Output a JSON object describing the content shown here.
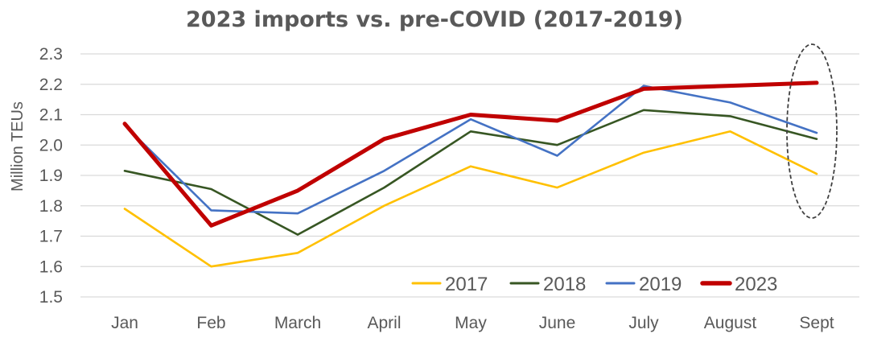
{
  "chart_data": {
    "type": "line",
    "title": "2023 imports vs. pre-COVID (2017-2019)",
    "xlabel": "",
    "ylabel": "Million TEUs",
    "categories": [
      "Jan",
      "Feb",
      "March",
      "April",
      "May",
      "June",
      "July",
      "August",
      "Sept"
    ],
    "ylim": [
      1.5,
      2.3
    ],
    "yticks": [
      "1.5",
      "1.6",
      "1.7",
      "1.8",
      "1.9",
      "2.0",
      "2.1",
      "2.2",
      "2.3"
    ],
    "grid": true,
    "legend_position": "bottom-right",
    "series": [
      {
        "name": "2017",
        "color": "#ffc000",
        "values": [
          1.79,
          1.6,
          1.645,
          1.8,
          1.93,
          1.86,
          1.975,
          2.045,
          1.905
        ]
      },
      {
        "name": "2018",
        "color": "#375623",
        "values": [
          1.915,
          1.855,
          1.705,
          1.86,
          2.045,
          2.0,
          2.115,
          2.095,
          2.02
        ]
      },
      {
        "name": "2019",
        "color": "#4472c4",
        "values": [
          2.065,
          1.785,
          1.775,
          1.915,
          2.085,
          1.965,
          2.195,
          2.14,
          2.04
        ]
      },
      {
        "name": "2023",
        "color": "#c00000",
        "values": [
          2.07,
          1.735,
          1.85,
          2.02,
          2.1,
          2.08,
          2.185,
          2.195,
          2.205
        ]
      }
    ],
    "annotation": "dashed-ellipse-around-sept"
  }
}
